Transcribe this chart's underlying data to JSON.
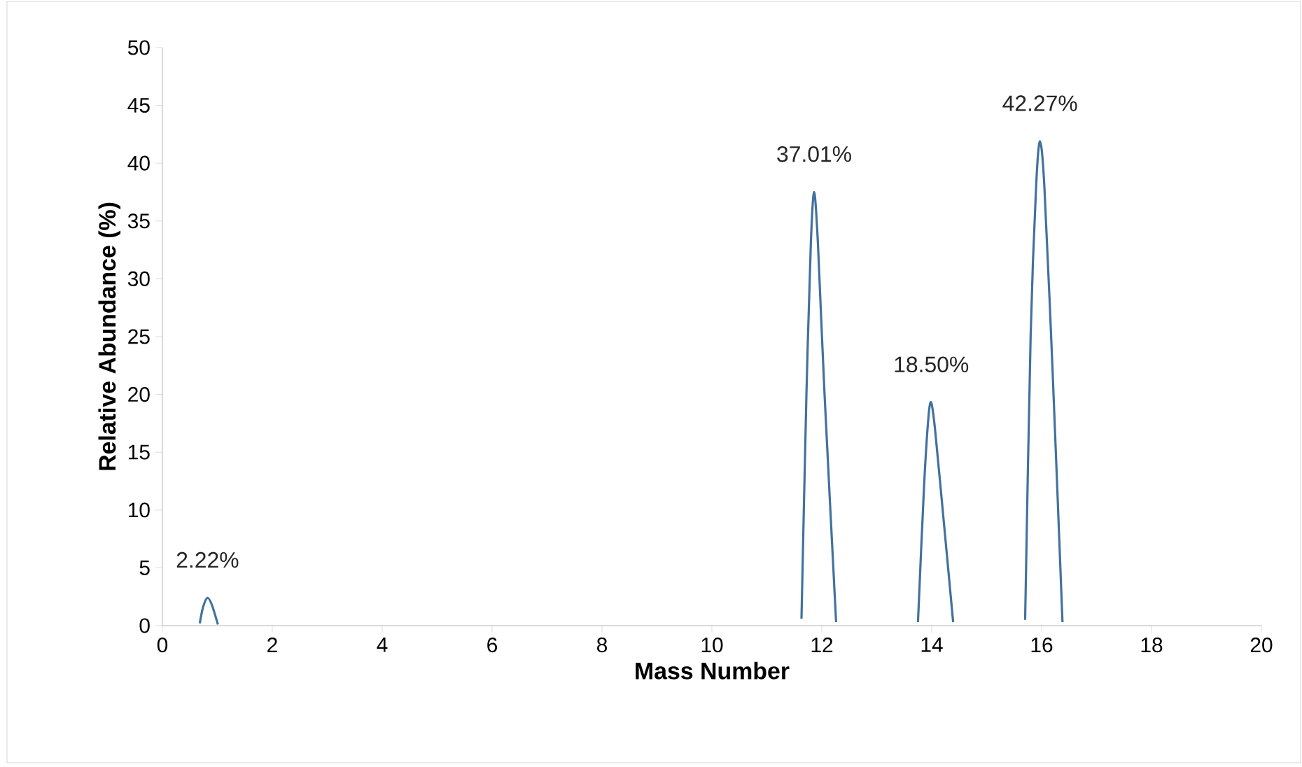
{
  "chart_data": {
    "type": "line",
    "xlabel": "Mass Number",
    "ylabel": "Relative Abundance (%)",
    "x": [
      0.68,
      0.74,
      0.82,
      0.9,
      1.01,
      null,
      11.63,
      11.72,
      11.8,
      11.86,
      11.93,
      12.05,
      12.26,
      null,
      13.75,
      13.86,
      13.94,
      13.99,
      14.06,
      14.2,
      14.39,
      null,
      15.7,
      15.8,
      15.9,
      15.97,
      16.05,
      16.2,
      16.38
    ],
    "series": [
      {
        "color": "#41729f",
        "values": [
          0.2,
          1.6,
          2.4,
          1.8,
          0.1,
          null,
          0.6,
          20,
          33,
          37.5,
          33,
          20,
          0.3,
          null,
          0.3,
          12,
          18,
          19.3,
          17,
          10,
          0.3,
          null,
          0.5,
          25,
          38,
          41.9,
          38,
          22,
          0.3
        ]
      }
    ],
    "xlim": [
      0,
      20
    ],
    "ylim": [
      0,
      50
    ],
    "xticks": [
      0,
      2,
      4,
      6,
      8,
      10,
      12,
      14,
      16,
      18,
      20
    ],
    "yticks": [
      0,
      5,
      10,
      15,
      20,
      25,
      30,
      35,
      40,
      45,
      50
    ],
    "grid": false,
    "marker": "none",
    "line_style": "solid",
    "annotations": [
      {
        "text": "2.22%",
        "x": 0.82,
        "y": 2.4
      },
      {
        "text": "37.01%",
        "x": 11.86,
        "y": 37.5
      },
      {
        "text": "18.50%",
        "x": 13.99,
        "y": 19.3
      },
      {
        "text": "42.27%",
        "x": 15.97,
        "y": 41.9
      }
    ]
  }
}
